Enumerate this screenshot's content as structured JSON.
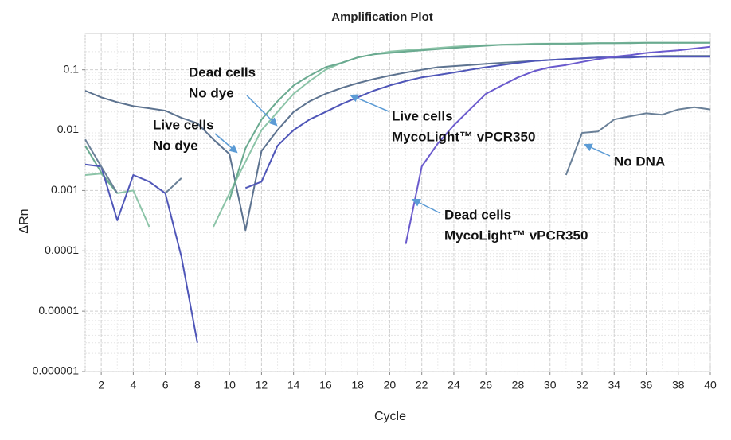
{
  "chart_data": {
    "type": "line",
    "title": "Amplification Plot",
    "x_label": "Cycle",
    "y_label": "ΔRn",
    "log_y": true,
    "grid": true,
    "x": [
      1,
      2,
      3,
      4,
      5,
      6,
      7,
      8,
      9,
      10,
      11,
      12,
      13,
      14,
      15,
      16,
      17,
      18,
      19,
      20,
      21,
      22,
      23,
      24,
      25,
      26,
      27,
      28,
      29,
      30,
      31,
      32,
      33,
      34,
      35,
      36,
      37,
      38,
      39,
      40
    ],
    "xlim": [
      1,
      40
    ],
    "xticks": [
      2,
      4,
      6,
      8,
      10,
      12,
      14,
      16,
      18,
      20,
      22,
      24,
      26,
      28,
      30,
      32,
      34,
      36,
      38,
      40
    ],
    "ylim": [
      1e-06,
      0.4
    ],
    "yticks": [
      1e-06,
      1e-05,
      0.0001,
      0.001,
      0.01,
      0.1
    ],
    "series": [
      {
        "color": "#5d7390",
        "values": [
          0.045,
          0.035,
          0.029,
          0.025,
          0.023,
          0.021,
          0.016,
          0.013,
          0.007,
          0.004,
          0.00022,
          0.0045,
          0.01,
          0.02,
          0.03,
          0.04,
          0.05,
          0.06,
          0.07,
          0.08,
          0.09,
          0.1,
          0.11,
          0.115,
          0.12,
          0.125,
          0.13,
          0.135,
          0.14,
          0.145,
          0.15,
          0.155,
          0.16,
          0.16,
          0.165,
          0.165,
          0.17,
          0.17,
          0.17,
          0.17
        ]
      },
      {
        "color": "#8cc4a8",
        "values": [
          0.0018,
          0.0019,
          0.0009,
          0.001,
          0.00025,
          null,
          null,
          null,
          0.00025,
          0.0009,
          0.003,
          0.01,
          0.02,
          0.04,
          0.065,
          0.1,
          0.13,
          0.16,
          0.18,
          0.2,
          0.21,
          0.22,
          0.23,
          0.24,
          0.25,
          0.255,
          0.26,
          0.265,
          0.27,
          0.27,
          0.27,
          0.275,
          0.275,
          0.275,
          0.28,
          0.28,
          0.28,
          0.28,
          0.28,
          0.28
        ]
      },
      {
        "color": "#6aaa90",
        "values": [
          0.0055,
          0.002,
          0.0009,
          null,
          null,
          null,
          null,
          null,
          null,
          0.0007,
          0.005,
          0.015,
          0.03,
          0.055,
          0.08,
          0.11,
          0.13,
          0.16,
          0.18,
          0.19,
          0.2,
          0.21,
          0.22,
          0.23,
          0.24,
          0.25,
          0.26,
          0.26,
          0.265,
          0.27,
          0.27,
          0.27,
          0.275,
          0.275,
          0.275,
          0.28,
          0.28,
          0.28,
          0.28,
          0.28
        ]
      },
      {
        "color": "#4f56b8",
        "values": [
          0.0027,
          0.0025,
          0.00032,
          0.0018,
          0.0014,
          0.0009,
          8e-05,
          3e-06,
          null,
          null,
          0.0011,
          0.0014,
          0.0055,
          0.01,
          0.015,
          0.02,
          0.027,
          0.035,
          0.045,
          0.055,
          0.065,
          0.075,
          0.082,
          0.09,
          0.1,
          0.11,
          0.12,
          0.13,
          0.14,
          0.145,
          0.15,
          0.155,
          0.16,
          0.16,
          0.16,
          0.165,
          0.165,
          0.165,
          0.165,
          0.165
        ]
      },
      {
        "color": "#6a5acd",
        "values": [
          null,
          null,
          null,
          null,
          null,
          null,
          null,
          null,
          null,
          null,
          null,
          null,
          null,
          null,
          null,
          null,
          null,
          null,
          null,
          null,
          0.00013,
          0.0025,
          0.006,
          0.012,
          0.022,
          0.04,
          0.055,
          0.075,
          0.095,
          0.11,
          0.12,
          0.135,
          0.15,
          0.165,
          0.175,
          0.19,
          0.2,
          0.21,
          0.225,
          0.24
        ]
      },
      {
        "color": "#6a8098",
        "values": [
          0.007,
          0.0025,
          0.0009,
          null,
          null,
          0.0009,
          0.0016,
          null,
          null,
          null,
          null,
          null,
          null,
          null,
          null,
          null,
          null,
          null,
          null,
          null,
          null,
          null,
          null,
          null,
          null,
          null,
          null,
          null,
          null,
          null,
          0.0018,
          0.009,
          0.0095,
          0.015,
          0.017,
          0.019,
          0.018,
          0.022,
          0.024,
          0.022
        ]
      }
    ],
    "annotations": [
      {
        "lines": [
          "Dead cells",
          "No dye"
        ]
      },
      {
        "lines": [
          "Live cells",
          "No dye"
        ]
      },
      {
        "lines": [
          "Live cells",
          "MycoLight™ vPCR350"
        ]
      },
      {
        "lines": [
          "Dead cells",
          "MycoLight™ vPCR350"
        ]
      },
      {
        "lines": [
          "No DNA"
        ]
      }
    ]
  }
}
